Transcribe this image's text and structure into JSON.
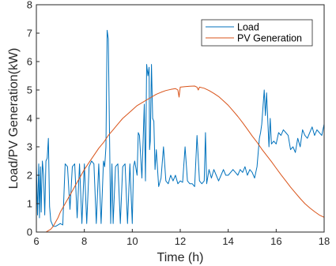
{
  "chart_data": {
    "type": "line",
    "xlabel": "Time (h)",
    "ylabel": "Load/PV Generation(kW)",
    "xlim": [
      6,
      18
    ],
    "ylim": [
      0,
      8
    ],
    "xticks": [
      "6",
      "8",
      "10",
      "12",
      "14",
      "16",
      "18"
    ],
    "yticks": [
      "0",
      "1",
      "2",
      "3",
      "4",
      "5",
      "6",
      "7",
      "8"
    ],
    "grid": false,
    "legend_position": "top-right",
    "series": [
      {
        "name": "Load",
        "color": "#0072BD",
        "x": [
          6.0,
          6.05,
          6.1,
          6.13,
          6.17,
          6.2,
          6.25,
          6.3,
          6.35,
          6.4,
          6.45,
          6.5,
          6.55,
          6.6,
          6.65,
          6.7,
          6.8,
          7.0,
          7.1,
          7.2,
          7.3,
          7.4,
          7.5,
          7.6,
          7.7,
          7.8,
          7.9,
          8.0,
          8.1,
          8.2,
          8.3,
          8.4,
          8.5,
          8.6,
          8.7,
          8.8,
          8.85,
          8.9,
          8.95,
          9.0,
          9.05,
          9.1,
          9.15,
          9.2,
          9.3,
          9.4,
          9.5,
          9.6,
          9.7,
          9.8,
          9.9,
          10.0,
          10.05,
          10.1,
          10.2,
          10.25,
          10.3,
          10.4,
          10.5,
          10.55,
          10.6,
          10.65,
          10.7,
          10.72,
          10.75,
          10.8,
          10.85,
          10.9,
          10.95,
          11.0,
          11.1,
          11.2,
          11.3,
          11.4,
          11.5,
          11.6,
          11.7,
          11.8,
          11.9,
          12.0,
          12.1,
          12.2,
          12.3,
          12.4,
          12.5,
          12.6,
          12.7,
          12.8,
          12.9,
          13.0,
          13.05,
          13.1,
          13.2,
          13.3,
          13.4,
          13.5,
          13.6,
          13.7,
          13.8,
          13.9,
          14.0,
          14.1,
          14.2,
          14.3,
          14.4,
          14.5,
          14.6,
          14.7,
          14.8,
          14.9,
          15.0,
          15.1,
          15.2,
          15.3,
          15.35,
          15.4,
          15.5,
          15.55,
          15.6,
          15.7,
          15.75,
          15.8,
          15.9,
          16.0,
          16.1,
          16.2,
          16.3,
          16.4,
          16.5,
          16.6,
          16.7,
          16.8,
          16.9,
          17.0,
          17.1,
          17.2,
          17.3,
          17.4,
          17.5,
          17.6,
          17.7,
          17.8,
          17.9,
          18.0
        ],
        "y": [
          2.4,
          0.6,
          2.4,
          0.5,
          2.3,
          0.7,
          2.5,
          2.0,
          0.6,
          2.5,
          2.6,
          3.3,
          0.9,
          0.4,
          0.3,
          0.2,
          0.2,
          0.3,
          0.25,
          2.4,
          2.3,
          0.8,
          2.3,
          2.4,
          0.5,
          2.4,
          0.3,
          2.4,
          0.3,
          2.3,
          2.5,
          2.4,
          0.3,
          2.4,
          0.3,
          2.5,
          2.3,
          3.0,
          7.1,
          6.8,
          3.5,
          0.3,
          2.4,
          0.3,
          2.3,
          2.4,
          0.3,
          2.3,
          2.4,
          0.3,
          2.4,
          0.3,
          2.3,
          2.5,
          2.0,
          3.5,
          3.4,
          1.9,
          4.5,
          1.8,
          5.9,
          5.5,
          5.8,
          2.9,
          3.2,
          5.9,
          4.0,
          3.9,
          2.2,
          2.9,
          1.6,
          1.9,
          3.0,
          1.8,
          1.7,
          2.0,
          1.8,
          2.0,
          1.7,
          1.8,
          1.75,
          3.0,
          1.8,
          1.7,
          1.7,
          1.6,
          3.4,
          1.8,
          1.7,
          1.8,
          3.5,
          1.7,
          2.2,
          1.9,
          2.2,
          2.0,
          1.8,
          2.0,
          2.2,
          2.0,
          2.0,
          2.1,
          2.2,
          2.1,
          2.0,
          2.2,
          2.1,
          2.3,
          2.0,
          2.2,
          2.1,
          1.9,
          2.3,
          3.3,
          3.5,
          3.8,
          5.0,
          4.1,
          4.9,
          3.0,
          4.0,
          3.1,
          3.2,
          3.1,
          3.5,
          3.4,
          3.6,
          3.5,
          3.4,
          2.9,
          3.0,
          2.8,
          3.3,
          3.0,
          3.6,
          3.4,
          3.3,
          3.5,
          3.7,
          3.4,
          3.6,
          3.5,
          3.4,
          3.8
        ]
      },
      {
        "name": "PV Generation",
        "color": "#D95319",
        "x": [
          6.0,
          6.4,
          6.5,
          6.6,
          6.7,
          6.8,
          6.9,
          7.0,
          7.2,
          7.4,
          7.6,
          7.8,
          8.0,
          8.2,
          8.4,
          8.6,
          8.8,
          9.0,
          9.2,
          9.4,
          9.6,
          9.8,
          10.0,
          10.2,
          10.4,
          10.6,
          10.8,
          11.0,
          11.2,
          11.4,
          11.6,
          11.8,
          11.9,
          11.95,
          12.0,
          12.2,
          12.4,
          12.6,
          12.7,
          12.75,
          12.8,
          13.0,
          13.2,
          13.4,
          13.6,
          13.8,
          14.0,
          14.2,
          14.4,
          14.6,
          14.8,
          15.0,
          15.2,
          15.4,
          15.6,
          15.8,
          16.0,
          16.2,
          16.4,
          16.6,
          16.8,
          17.0,
          17.2,
          17.4,
          17.6,
          17.8,
          18.0
        ],
        "y": [
          0.0,
          0.0,
          0.05,
          0.1,
          0.2,
          0.35,
          0.5,
          0.7,
          1.0,
          1.3,
          1.6,
          1.9,
          2.2,
          2.45,
          2.7,
          2.95,
          3.15,
          3.4,
          3.6,
          3.8,
          4.0,
          4.15,
          4.3,
          4.45,
          4.55,
          4.65,
          4.75,
          4.85,
          4.92,
          4.98,
          5.02,
          5.05,
          5.0,
          4.75,
          5.1,
          5.12,
          5.13,
          5.14,
          5.1,
          5.0,
          5.1,
          5.06,
          4.98,
          4.88,
          4.77,
          4.62,
          4.46,
          4.27,
          4.07,
          3.85,
          3.62,
          3.38,
          3.16,
          2.92,
          2.7,
          2.48,
          2.25,
          2.02,
          1.8,
          1.58,
          1.38,
          1.18,
          1.0,
          0.85,
          0.72,
          0.6,
          0.52
        ]
      }
    ]
  }
}
